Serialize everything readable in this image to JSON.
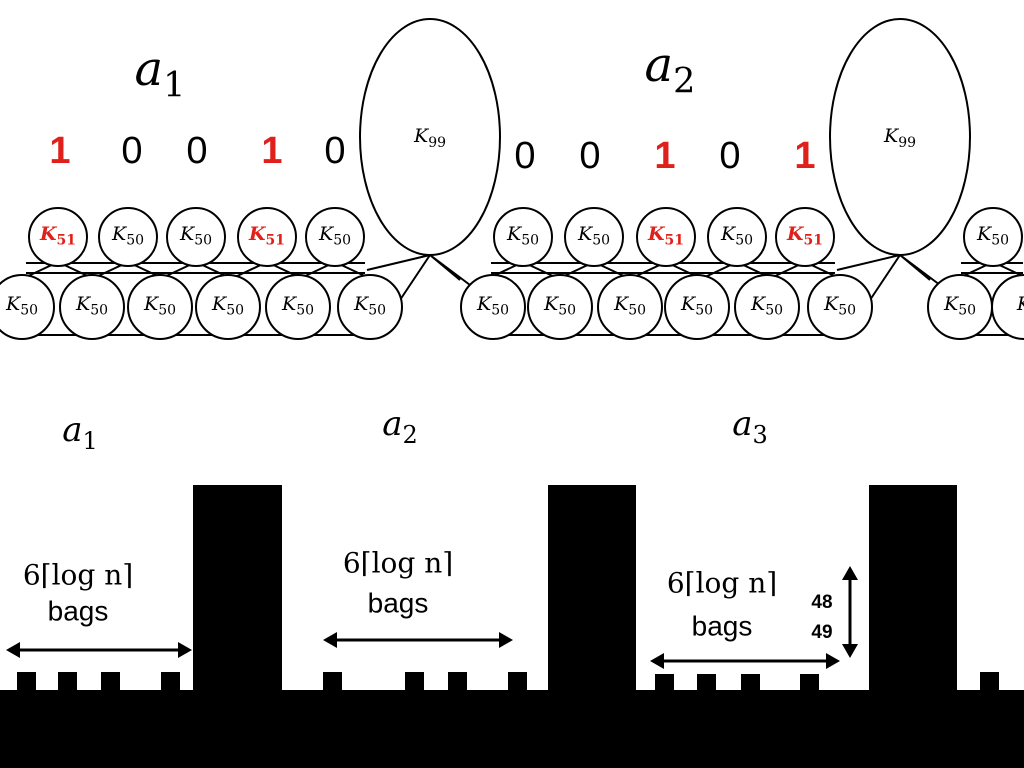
{
  "graph": {
    "groups": [
      {
        "label": {
          "main": "a",
          "sub": "1"
        },
        "bits": [
          "1",
          "0",
          "0",
          "1",
          "0"
        ],
        "top_nodes": [
          {
            "main": "K",
            "sub": "51",
            "bold": true
          },
          {
            "main": "K",
            "sub": "50"
          },
          {
            "main": "K",
            "sub": "50"
          },
          {
            "main": "K",
            "sub": "51",
            "bold": true
          },
          {
            "main": "K",
            "sub": "50"
          }
        ],
        "bottom_nodes": [
          {
            "main": "K",
            "sub": "50"
          },
          {
            "main": "K",
            "sub": "50"
          },
          {
            "main": "K",
            "sub": "50"
          },
          {
            "main": "K",
            "sub": "50"
          },
          {
            "main": "K",
            "sub": "50"
          },
          {
            "main": "K",
            "sub": "50"
          }
        ],
        "big_node": {
          "main": "K",
          "sub": "99"
        }
      },
      {
        "label": {
          "main": "a",
          "sub": "2"
        },
        "bits": [
          "0",
          "0",
          "1",
          "0",
          "1"
        ],
        "top_nodes": [
          {
            "main": "K",
            "sub": "50"
          },
          {
            "main": "K",
            "sub": "50"
          },
          {
            "main": "K",
            "sub": "51",
            "bold": true
          },
          {
            "main": "K",
            "sub": "50"
          },
          {
            "main": "K",
            "sub": "51",
            "bold": true
          }
        ],
        "bottom_nodes": [
          {
            "main": "K",
            "sub": "50"
          },
          {
            "main": "K",
            "sub": "50"
          },
          {
            "main": "K",
            "sub": "50"
          },
          {
            "main": "K",
            "sub": "50"
          },
          {
            "main": "K",
            "sub": "50"
          },
          {
            "main": "K",
            "sub": "50"
          }
        ],
        "big_node": {
          "main": "K",
          "sub": "99"
        }
      },
      {
        "top_nodes": [
          {
            "main": "K",
            "sub": "50"
          }
        ],
        "bottom_nodes": [
          {
            "main": "K",
            "sub": "50"
          },
          {
            "main": "K"
          }
        ]
      }
    ],
    "highlight_color": "#e0201b"
  },
  "bars": {
    "labels": [
      {
        "main": "a",
        "sub": "1"
      },
      {
        "main": "a",
        "sub": "2"
      },
      {
        "main": "a",
        "sub": "3"
      }
    ],
    "gaps": [
      {
        "count": "6⌈log n⌉",
        "unit": "bags"
      },
      {
        "count": "6⌈log n⌉",
        "unit": "bags"
      },
      {
        "count": "6⌈log n⌉",
        "unit": "bags"
      }
    ],
    "height_labels": [
      "48",
      "49"
    ]
  }
}
